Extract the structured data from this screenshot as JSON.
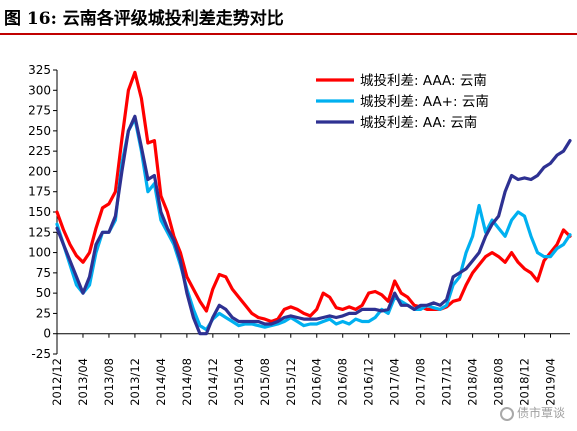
{
  "header": {
    "title": "图 16:  云南各评级城投利差走势对比"
  },
  "watermark": {
    "text": "债市覃谈"
  },
  "chart_data": {
    "type": "line",
    "title": "图 16:  云南各评级城投利差走势对比",
    "xlabel": "",
    "ylabel": "",
    "ylim": [
      -25,
      325
    ],
    "yticks": [
      -25,
      0,
      25,
      50,
      75,
      100,
      125,
      150,
      175,
      200,
      225,
      250,
      275,
      300,
      325
    ],
    "xlim": [
      "2012/12",
      "2019/07"
    ],
    "xticks": [
      "2012/12",
      "2013/04",
      "2013/08",
      "2013/12",
      "2014/04",
      "2014/08",
      "2014/12",
      "2015/04",
      "2015/08",
      "2015/12",
      "2016/04",
      "2016/08",
      "2016/12",
      "2017/04",
      "2017/08",
      "2017/12",
      "2018/04",
      "2018/08",
      "2018/12",
      "2019/04"
    ],
    "grid": false,
    "legend_position": "top-right",
    "series": [
      {
        "name": "城投利差: AAA: 云南",
        "color": "#ff0000",
        "points": [
          [
            "2012/12",
            150
          ],
          [
            "2013/01",
            128
          ],
          [
            "2013/02",
            110
          ],
          [
            "2013/03",
            96
          ],
          [
            "2013/04",
            88
          ],
          [
            "2013/05",
            100
          ],
          [
            "2013/06",
            130
          ],
          [
            "2013/07",
            155
          ],
          [
            "2013/08",
            160
          ],
          [
            "2013/09",
            175
          ],
          [
            "2013/10",
            240
          ],
          [
            "2013/11",
            300
          ],
          [
            "2013/12",
            322
          ],
          [
            "2014/01",
            290
          ],
          [
            "2014/02",
            235
          ],
          [
            "2014/03",
            238
          ],
          [
            "2014/04",
            170
          ],
          [
            "2014/05",
            150
          ],
          [
            "2014/06",
            120
          ],
          [
            "2014/07",
            100
          ],
          [
            "2014/08",
            70
          ],
          [
            "2014/09",
            55
          ],
          [
            "2014/10",
            40
          ],
          [
            "2014/11",
            28
          ],
          [
            "2014/12",
            55
          ],
          [
            "2015/01",
            73
          ],
          [
            "2015/02",
            70
          ],
          [
            "2015/03",
            55
          ],
          [
            "2015/04",
            45
          ],
          [
            "2015/05",
            35
          ],
          [
            "2015/06",
            25
          ],
          [
            "2015/07",
            20
          ],
          [
            "2015/08",
            18
          ],
          [
            "2015/09",
            15
          ],
          [
            "2015/10",
            18
          ],
          [
            "2015/11",
            30
          ],
          [
            "2015/12",
            33
          ],
          [
            "2016/01",
            30
          ],
          [
            "2016/02",
            25
          ],
          [
            "2016/03",
            22
          ],
          [
            "2016/04",
            30
          ],
          [
            "2016/05",
            50
          ],
          [
            "2016/06",
            45
          ],
          [
            "2016/07",
            32
          ],
          [
            "2016/08",
            30
          ],
          [
            "2016/09",
            33
          ],
          [
            "2016/10",
            30
          ],
          [
            "2016/11",
            35
          ],
          [
            "2016/12",
            50
          ],
          [
            "2017/01",
            52
          ],
          [
            "2017/02",
            48
          ],
          [
            "2017/03",
            40
          ],
          [
            "2017/04",
            65
          ],
          [
            "2017/05",
            50
          ],
          [
            "2017/06",
            45
          ],
          [
            "2017/07",
            35
          ],
          [
            "2017/08",
            33
          ],
          [
            "2017/09",
            30
          ],
          [
            "2017/10",
            30
          ],
          [
            "2017/11",
            30
          ],
          [
            "2017/12",
            33
          ],
          [
            "2018/01",
            40
          ],
          [
            "2018/02",
            42
          ],
          [
            "2018/03",
            60
          ],
          [
            "2018/04",
            75
          ],
          [
            "2018/05",
            85
          ],
          [
            "2018/06",
            95
          ],
          [
            "2018/07",
            100
          ],
          [
            "2018/08",
            95
          ],
          [
            "2018/09",
            88
          ],
          [
            "2018/10",
            100
          ],
          [
            "2018/11",
            88
          ],
          [
            "2018/12",
            80
          ],
          [
            "2019/01",
            75
          ],
          [
            "2019/02",
            65
          ],
          [
            "2019/03",
            90
          ],
          [
            "2019/04",
            100
          ],
          [
            "2019/05",
            110
          ],
          [
            "2019/06",
            128
          ],
          [
            "2019/07",
            120
          ]
        ]
      },
      {
        "name": "城投利差: AA+: 云南",
        "color": "#00b0f0",
        "points": [
          [
            "2012/12",
            135
          ],
          [
            "2013/01",
            110
          ],
          [
            "2013/02",
            85
          ],
          [
            "2013/03",
            60
          ],
          [
            "2013/04",
            50
          ],
          [
            "2013/05",
            60
          ],
          [
            "2013/06",
            100
          ],
          [
            "2013/07",
            125
          ],
          [
            "2013/08",
            125
          ],
          [
            "2013/09",
            140
          ],
          [
            "2013/10",
            210
          ],
          [
            "2013/11",
            250
          ],
          [
            "2013/12",
            265
          ],
          [
            "2014/01",
            225
          ],
          [
            "2014/02",
            175
          ],
          [
            "2014/03",
            185
          ],
          [
            "2014/04",
            140
          ],
          [
            "2014/05",
            125
          ],
          [
            "2014/06",
            110
          ],
          [
            "2014/07",
            85
          ],
          [
            "2014/08",
            55
          ],
          [
            "2014/09",
            30
          ],
          [
            "2014/10",
            10
          ],
          [
            "2014/11",
            5
          ],
          [
            "2014/12",
            18
          ],
          [
            "2015/01",
            25
          ],
          [
            "2015/02",
            20
          ],
          [
            "2015/03",
            15
          ],
          [
            "2015/04",
            10
          ],
          [
            "2015/05",
            12
          ],
          [
            "2015/06",
            12
          ],
          [
            "2015/07",
            10
          ],
          [
            "2015/08",
            8
          ],
          [
            "2015/09",
            10
          ],
          [
            "2015/10",
            12
          ],
          [
            "2015/11",
            15
          ],
          [
            "2015/12",
            20
          ],
          [
            "2016/01",
            15
          ],
          [
            "2016/02",
            10
          ],
          [
            "2016/03",
            12
          ],
          [
            "2016/04",
            12
          ],
          [
            "2016/05",
            15
          ],
          [
            "2016/06",
            18
          ],
          [
            "2016/07",
            12
          ],
          [
            "2016/08",
            15
          ],
          [
            "2016/09",
            12
          ],
          [
            "2016/10",
            18
          ],
          [
            "2016/11",
            15
          ],
          [
            "2016/12",
            15
          ],
          [
            "2017/01",
            20
          ],
          [
            "2017/02",
            30
          ],
          [
            "2017/03",
            25
          ],
          [
            "2017/04",
            45
          ],
          [
            "2017/05",
            40
          ],
          [
            "2017/06",
            35
          ],
          [
            "2017/07",
            30
          ],
          [
            "2017/08",
            30
          ],
          [
            "2017/09",
            35
          ],
          [
            "2017/10",
            32
          ],
          [
            "2017/11",
            30
          ],
          [
            "2017/12",
            35
          ],
          [
            "2018/01",
            60
          ],
          [
            "2018/02",
            70
          ],
          [
            "2018/03",
            100
          ],
          [
            "2018/04",
            120
          ],
          [
            "2018/05",
            158
          ],
          [
            "2018/06",
            125
          ],
          [
            "2018/07",
            140
          ],
          [
            "2018/08",
            130
          ],
          [
            "2018/09",
            120
          ],
          [
            "2018/10",
            140
          ],
          [
            "2018/11",
            150
          ],
          [
            "2018/12",
            145
          ],
          [
            "2019/01",
            120
          ],
          [
            "2019/02",
            100
          ],
          [
            "2019/03",
            95
          ],
          [
            "2019/04",
            95
          ],
          [
            "2019/05",
            105
          ],
          [
            "2019/06",
            110
          ],
          [
            "2019/07",
            122
          ]
        ]
      },
      {
        "name": "城投利差: AA: 云南",
        "color": "#2e3192",
        "points": [
          [
            "2012/12",
            130
          ],
          [
            "2013/01",
            110
          ],
          [
            "2013/02",
            90
          ],
          [
            "2013/03",
            70
          ],
          [
            "2013/04",
            50
          ],
          [
            "2013/05",
            70
          ],
          [
            "2013/06",
            110
          ],
          [
            "2013/07",
            125
          ],
          [
            "2013/08",
            125
          ],
          [
            "2013/09",
            145
          ],
          [
            "2013/10",
            200
          ],
          [
            "2013/11",
            250
          ],
          [
            "2013/12",
            268
          ],
          [
            "2014/01",
            230
          ],
          [
            "2014/02",
            190
          ],
          [
            "2014/03",
            195
          ],
          [
            "2014/04",
            150
          ],
          [
            "2014/05",
            130
          ],
          [
            "2014/06",
            115
          ],
          [
            "2014/07",
            90
          ],
          [
            "2014/08",
            50
          ],
          [
            "2014/09",
            20
          ],
          [
            "2014/10",
            0
          ],
          [
            "2014/11",
            0
          ],
          [
            "2014/12",
            20
          ],
          [
            "2015/01",
            35
          ],
          [
            "2015/02",
            30
          ],
          [
            "2015/03",
            20
          ],
          [
            "2015/04",
            15
          ],
          [
            "2015/05",
            15
          ],
          [
            "2015/06",
            15
          ],
          [
            "2015/07",
            15
          ],
          [
            "2015/08",
            12
          ],
          [
            "2015/09",
            12
          ],
          [
            "2015/10",
            15
          ],
          [
            "2015/11",
            20
          ],
          [
            "2015/12",
            22
          ],
          [
            "2016/01",
            20
          ],
          [
            "2016/02",
            18
          ],
          [
            "2016/03",
            18
          ],
          [
            "2016/04",
            18
          ],
          [
            "2016/05",
            20
          ],
          [
            "2016/06",
            22
          ],
          [
            "2016/07",
            20
          ],
          [
            "2016/08",
            22
          ],
          [
            "2016/09",
            25
          ],
          [
            "2016/10",
            25
          ],
          [
            "2016/11",
            30
          ],
          [
            "2016/12",
            30
          ],
          [
            "2017/01",
            30
          ],
          [
            "2017/02",
            28
          ],
          [
            "2017/03",
            30
          ],
          [
            "2017/04",
            50
          ],
          [
            "2017/05",
            35
          ],
          [
            "2017/06",
            35
          ],
          [
            "2017/07",
            30
          ],
          [
            "2017/08",
            35
          ],
          [
            "2017/09",
            35
          ],
          [
            "2017/10",
            38
          ],
          [
            "2017/11",
            35
          ],
          [
            "2017/12",
            42
          ],
          [
            "2018/01",
            70
          ],
          [
            "2018/02",
            75
          ],
          [
            "2018/03",
            80
          ],
          [
            "2018/04",
            90
          ],
          [
            "2018/05",
            100
          ],
          [
            "2018/06",
            120
          ],
          [
            "2018/07",
            135
          ],
          [
            "2018/08",
            145
          ],
          [
            "2018/09",
            175
          ],
          [
            "2018/10",
            195
          ],
          [
            "2018/11",
            190
          ],
          [
            "2018/12",
            192
          ],
          [
            "2019/01",
            190
          ],
          [
            "2019/02",
            195
          ],
          [
            "2019/03",
            205
          ],
          [
            "2019/04",
            210
          ],
          [
            "2019/05",
            220
          ],
          [
            "2019/06",
            225
          ],
          [
            "2019/07",
            238
          ]
        ]
      }
    ]
  }
}
